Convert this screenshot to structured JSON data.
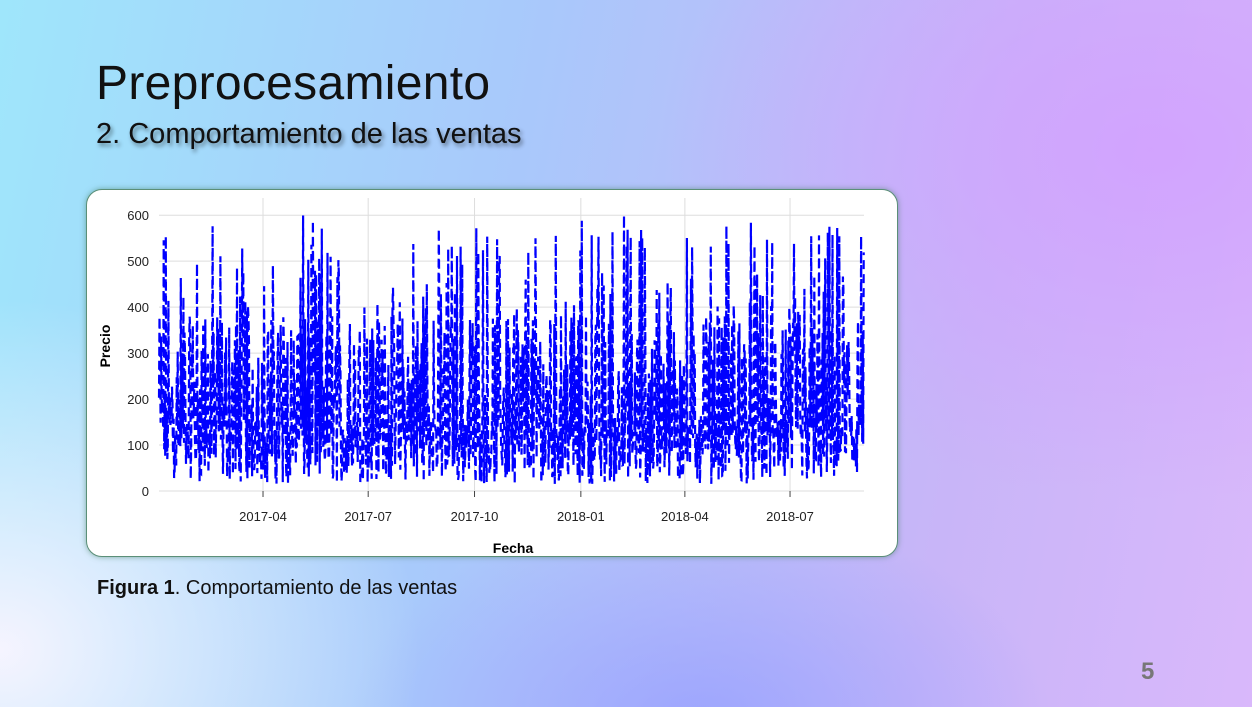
{
  "slide": {
    "title": "Preprocesamiento",
    "subtitle": "2. Comportamiento de las ventas",
    "caption_label": "Figura 1",
    "caption_text": ". Comportamiento de las ventas",
    "page_number": "5"
  },
  "chart_data": {
    "type": "line",
    "title": "",
    "xlabel": "Fecha",
    "ylabel": "Precio",
    "xlim": [
      "2017-01-01",
      "2018-09-03"
    ],
    "ylim": [
      0,
      620
    ],
    "y_ticks": [
      0,
      100,
      200,
      300,
      400,
      500,
      600
    ],
    "x_ticks": [
      "2017-04-01",
      "2017-07-01",
      "2017-10-01",
      "2018-01-01",
      "2018-04-01",
      "2018-07-01"
    ],
    "x_tick_labels": [
      "2017-04",
      "2017-07",
      "2017-10",
      "2018-01",
      "2018-04",
      "2018-07"
    ],
    "grid": true,
    "line_style": "dashed",
    "colors": {
      "series": "#0000ff"
    },
    "series": [
      {
        "values_by_month": [
          {
            "month": "2017-01",
            "min": 25,
            "max": 600
          },
          {
            "month": "2017-02",
            "min": 20,
            "max": 600
          },
          {
            "month": "2017-03",
            "min": 20,
            "max": 600
          },
          {
            "month": "2017-04",
            "min": 15,
            "max": 500
          },
          {
            "month": "2017-05",
            "min": 15,
            "max": 600
          },
          {
            "month": "2017-06",
            "min": 15,
            "max": 550
          },
          {
            "month": "2017-07",
            "min": 20,
            "max": 450
          },
          {
            "month": "2017-08",
            "min": 20,
            "max": 590
          },
          {
            "month": "2017-09",
            "min": 15,
            "max": 600
          },
          {
            "month": "2017-10",
            "min": 15,
            "max": 600
          },
          {
            "month": "2017-11",
            "min": 15,
            "max": 620
          },
          {
            "month": "2017-12",
            "min": 15,
            "max": 600
          },
          {
            "month": "2018-01",
            "min": 15,
            "max": 615
          },
          {
            "month": "2018-02",
            "min": 15,
            "max": 620
          },
          {
            "month": "2018-03",
            "min": 15,
            "max": 540
          },
          {
            "month": "2018-04",
            "min": 15,
            "max": 610
          },
          {
            "month": "2018-05",
            "min": 15,
            "max": 600
          },
          {
            "month": "2018-06",
            "min": 15,
            "max": 550
          },
          {
            "month": "2018-07",
            "min": 15,
            "max": 590
          },
          {
            "month": "2018-08",
            "min": 15,
            "max": 585
          }
        ]
      }
    ]
  }
}
